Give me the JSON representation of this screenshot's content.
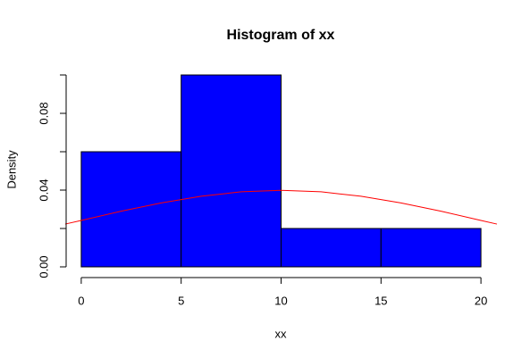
{
  "chart_data": {
    "type": "histogram",
    "title": "Histogram of xx",
    "xlabel": "xx",
    "ylabel": "Density",
    "bins": [
      0,
      5,
      10,
      15,
      20
    ],
    "values": [
      0.06,
      0.1,
      0.02,
      0.02
    ],
    "color": "#0000ff",
    "xlim": [
      -0.8,
      20.8
    ],
    "ylim": [
      -0.004,
      0.104
    ],
    "xticks": [
      0,
      5,
      10,
      15,
      20
    ],
    "yticks": [
      {
        "value": 0,
        "label": "0.00"
      },
      {
        "value": 0.02,
        "label": null
      },
      {
        "value": 0.04,
        "label": "0.04"
      },
      {
        "value": 0.06,
        "label": null
      },
      {
        "value": 0.08,
        "label": "0.08"
      },
      {
        "value": 0.1,
        "label": null
      }
    ],
    "density_curve": {
      "color": "#ff0000",
      "x": [
        -0.8,
        0,
        2,
        4,
        6,
        8,
        10,
        12,
        14,
        16,
        18,
        20,
        20.8
      ],
      "y": [
        0.0223,
        0.0242,
        0.029,
        0.0333,
        0.0368,
        0.0391,
        0.0399,
        0.0391,
        0.0368,
        0.0333,
        0.029,
        0.0242,
        0.0223
      ]
    }
  }
}
